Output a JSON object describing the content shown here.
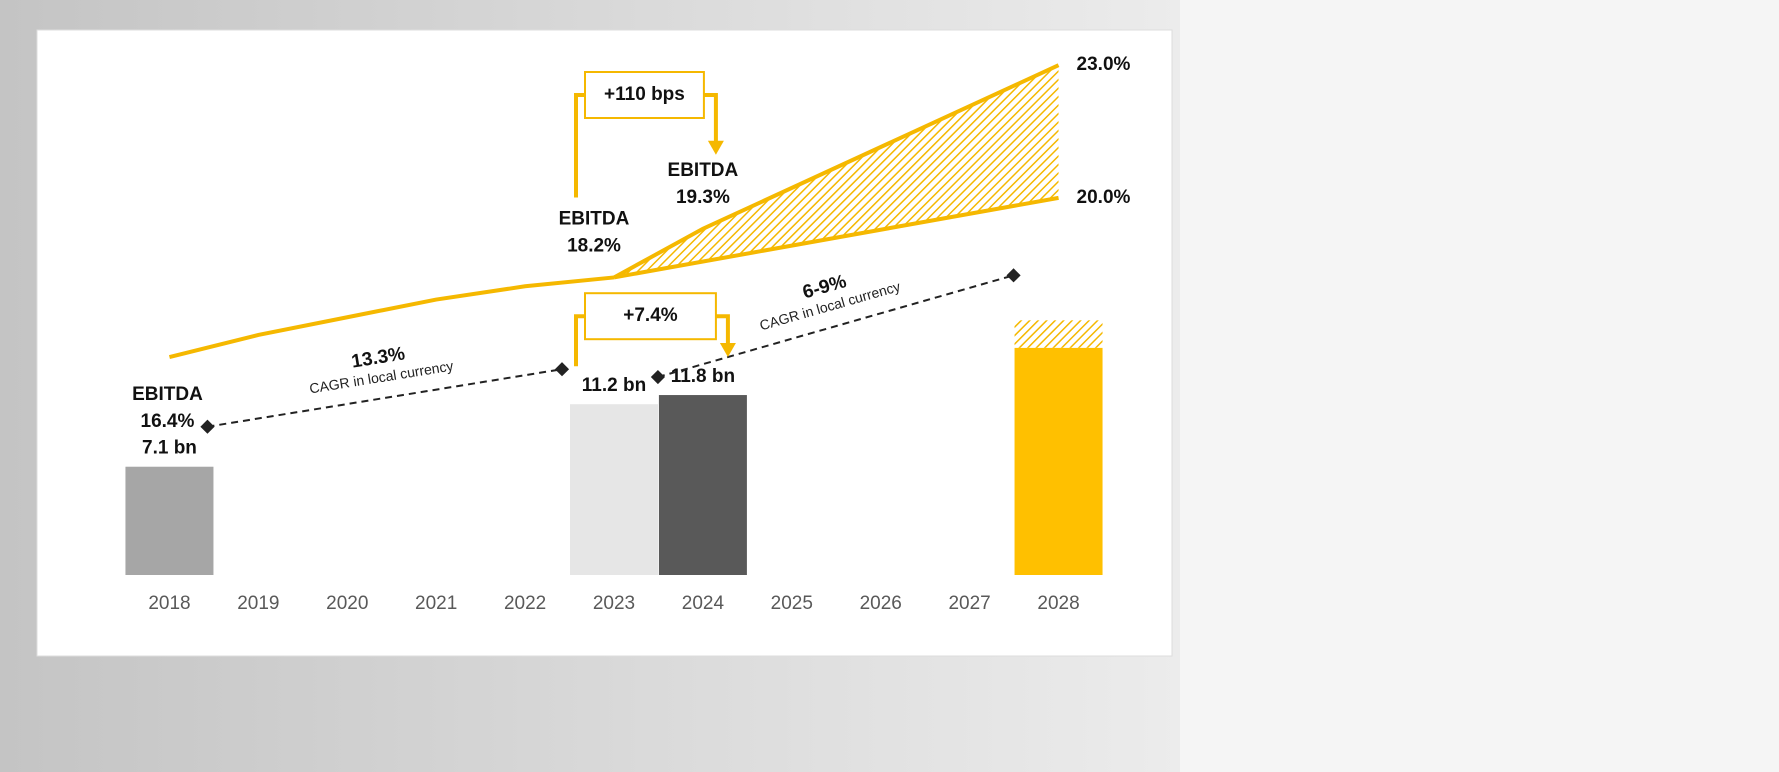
{
  "chart_data": {
    "type": "combo",
    "x": [
      2018,
      2019,
      2020,
      2021,
      2022,
      2023,
      2024,
      2025,
      2026,
      2027,
      2028
    ],
    "xlim": [
      2017.5,
      2028.5
    ],
    "ylim": [
      0,
      20
    ],
    "y2lim": [
      10,
      24
    ],
    "bars": {
      "values": [
        7.1,
        null,
        null,
        null,
        null,
        11.2,
        11.8,
        null,
        null,
        null,
        14.9
      ],
      "value_labels": [
        "7.1 bn",
        null,
        null,
        null,
        null,
        "11.2 bn",
        "11.8 bn",
        null,
        null,
        null,
        null
      ],
      "colors": [
        "#a6a6a6",
        null,
        null,
        null,
        null,
        "#e6e6e6",
        "#595959",
        null,
        null,
        null,
        "#ffc000"
      ],
      "extension": [
        null,
        null,
        null,
        null,
        null,
        null,
        null,
        null,
        null,
        null,
        1.8
      ],
      "extension_color": "#ffc000"
    },
    "line_color": "#f5b800",
    "point_label": "EBITDA",
    "lines": [
      {
        "x": [
          2018,
          2019,
          2020,
          2021,
          2022,
          2023
        ],
        "values": [
          16.4,
          16.9,
          17.3,
          17.7,
          18.0,
          18.2
        ],
        "value_labels": [
          "16.4%",
          null,
          null,
          null,
          null,
          "18.2%"
        ]
      },
      {
        "x": [
          2023,
          2028
        ],
        "values": [
          18.2,
          20.0
        ],
        "value_labels": [
          null,
          "20.0%"
        ]
      },
      {
        "x": [
          2023,
          2024,
          2028
        ],
        "values": [
          18.2,
          19.3,
          23.0
        ],
        "value_labels": [
          null,
          "19.3%",
          "23.0%"
        ]
      }
    ],
    "annotations": {
      "margin_change": "+110 bps",
      "revenue_change": "+7.4%",
      "cagr_past": "13.3%",
      "cagr_future": "6-9%",
      "cagr_note": "CAGR in local currency"
    }
  }
}
